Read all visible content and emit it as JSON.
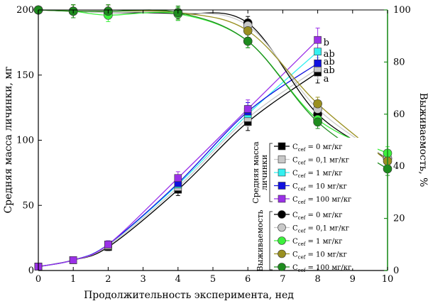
{
  "chart_data": {
    "type": "line",
    "x": [
      0,
      1,
      2,
      4,
      6,
      8,
      10
    ],
    "xlabel": "Продолжительность эксперимента, нед",
    "xlim": [
      0,
      10
    ],
    "x_ticks": [
      "0",
      "1",
      "2",
      "3",
      "4",
      "5",
      "6",
      "7",
      "8",
      "9",
      "10"
    ],
    "left_axis": {
      "label": "Средняя масса личинки, мг",
      "ylim": [
        0,
        200
      ],
      "ticks": [
        "0",
        "50",
        "100",
        "150",
        "200"
      ]
    },
    "right_axis": {
      "label": "Выживаемость, %",
      "ylim": [
        0,
        100
      ],
      "ticks": [
        "0",
        "20",
        "40",
        "60",
        "80",
        "100"
      ]
    },
    "grid": false,
    "legend_position": "lower-right",
    "legend_groups": [
      {
        "title_lines": [
          "Средняя масса",
          "личинки"
        ]
      },
      {
        "title_lines": [
          "Выживаемость"
        ]
      }
    ],
    "series": [
      {
        "name": "C_cef = 0 мг/кг",
        "sub": "cef",
        "lead": "C",
        "tail": " = 0 мг/кг",
        "group": "mass",
        "axis": "left",
        "marker": "square",
        "color": "#000000",
        "y": [
          3,
          8,
          18,
          62,
          114,
          152,
          null
        ]
      },
      {
        "name": "C_cef = 0,1 мг/кг",
        "sub": "cef",
        "lead": "C",
        "tail": " = 0,1 мг/кг",
        "group": "mass",
        "axis": "left",
        "marker": "square",
        "color": "#c8c8c8",
        "y": [
          3,
          8,
          19,
          64,
          117,
          155,
          null
        ]
      },
      {
        "name": "C_cef = 1 мг/кг",
        "sub": "cef",
        "lead": "C",
        "tail": " = 1 мг/кг",
        "group": "mass",
        "axis": "left",
        "marker": "square",
        "color": "#33f0f0",
        "y": [
          3,
          8,
          20,
          66,
          120,
          168,
          null
        ]
      },
      {
        "name": "C_cef = 10 мг/кг",
        "sub": "cef",
        "lead": "C",
        "tail": " = 10 мг/кг",
        "group": "mass",
        "axis": "left",
        "marker": "square",
        "color": "#1010e0",
        "y": [
          3,
          8,
          20,
          67,
          122,
          159,
          null
        ]
      },
      {
        "name": "C_cef = 100 мг/кг",
        "sub": "cef",
        "lead": "C",
        "tail": " = 100 мг/кг",
        "group": "mass",
        "axis": "left",
        "marker": "square",
        "color": "#9b30e8",
        "y": [
          3,
          8,
          20,
          71,
          124,
          177,
          null
        ]
      },
      {
        "name": "C_cef = 0 мг/кг",
        "sub": "cef",
        "lead": "C",
        "tail": " = 0 мг/кг",
        "group": "survival",
        "axis": "right",
        "marker": "circle",
        "color": "#000000",
        "y": [
          100,
          99.5,
          99,
          98.5,
          95,
          60,
          43
        ]
      },
      {
        "name": "C_cef = 0,1 мг/кг",
        "sub": "cef",
        "lead": "C",
        "tail": " = 0,1 мг/кг",
        "group": "survival",
        "axis": "right",
        "marker": "circle",
        "color": "#c8c8c8",
        "y": [
          100,
          99.5,
          99,
          99,
          94,
          62,
          43
        ]
      },
      {
        "name": "C_cef = 1 мг/кг",
        "sub": "cef",
        "lead": "C",
        "tail": " = 1 мг/кг",
        "group": "survival",
        "axis": "right",
        "marker": "circle",
        "color": "#3cf03c",
        "y": [
          100,
          99.5,
          98,
          98.5,
          88,
          58,
          45
        ]
      },
      {
        "name": "C_cef = 10 мг/кг",
        "sub": "cef",
        "lead": "C",
        "tail": " = 10 мг/кг",
        "group": "survival",
        "axis": "right",
        "marker": "circle",
        "color": "#9a9020",
        "y": [
          100,
          99.5,
          99.5,
          99,
          92,
          64,
          42
        ]
      },
      {
        "name": "C_cef = 100 мг/кг",
        "sub": "cef",
        "lead": "C",
        "tail": " = 100 мг/кг",
        "group": "survival",
        "axis": "right",
        "marker": "circle",
        "color": "#1e8c1e",
        "y": [
          100,
          99.5,
          99.5,
          99,
          88,
          57,
          39
        ]
      }
    ],
    "annotations": [
      {
        "text": "b",
        "x": 8,
        "y_left": 177
      },
      {
        "text": "ab",
        "x": 8,
        "y_left": 168
      },
      {
        "text": "ab",
        "x": 8,
        "y_left": 159
      },
      {
        "text": "ab",
        "x": 8,
        "y_left": 155
      },
      {
        "text": "a",
        "x": 8,
        "y_left": 148
      }
    ],
    "colors": {
      "left_axis": "#000000",
      "right_axis": "#1e8c1e"
    }
  }
}
